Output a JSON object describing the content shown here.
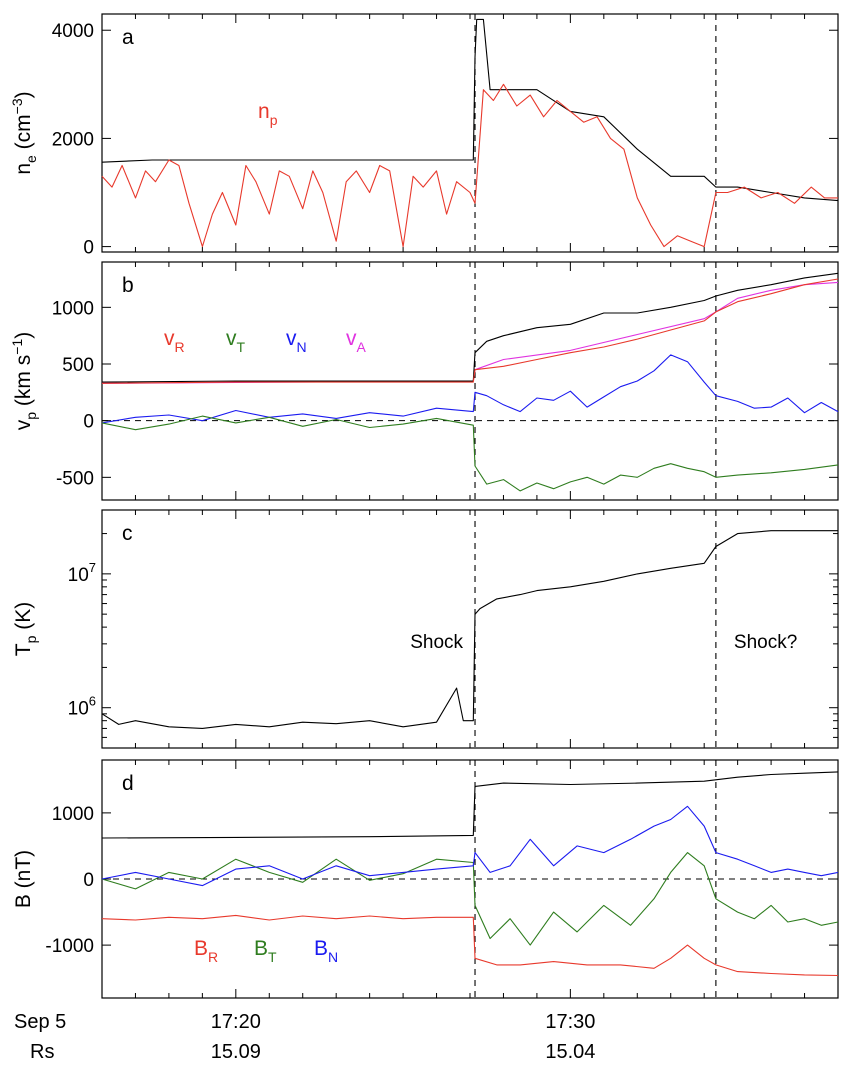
{
  "colors": {
    "black": "#000000",
    "red": "#e8392c",
    "green": "#2f7d1f",
    "blue": "#1b1bf0",
    "magenta": "#e033e0"
  },
  "xaxis": {
    "row_labels": [
      "Sep 5",
      "Rs"
    ],
    "ticks": [
      {
        "time": "17:20",
        "rs": "15.09",
        "t": 20
      },
      {
        "time": "17:30",
        "rs": "15.04",
        "t": 30
      }
    ],
    "range": [
      16.0,
      38.0
    ]
  },
  "vlines": [
    {
      "t": 27.15,
      "label": "Shock"
    },
    {
      "t": 34.35,
      "label": "Shock?"
    }
  ],
  "chart_data": [
    {
      "panel": "a",
      "type": "line",
      "ylabel": "n",
      "ylabel_sub": "e",
      "ylabel_unit": " (cm",
      "ylabel_sup": "−3",
      "ylabel_close": ")",
      "ylim": [
        -100,
        4300
      ],
      "yticks": [
        0,
        2000,
        4000
      ],
      "scale": "linear",
      "labels": [
        {
          "text": "n",
          "sub": "p",
          "color": "red"
        }
      ],
      "series": [
        {
          "name": "n_e",
          "color": "black",
          "x": [
            16.0,
            17.5,
            18.5,
            20.0,
            22.0,
            24.0,
            26.0,
            27.1,
            27.15,
            27.2,
            27.4,
            27.6,
            28.0,
            29.0,
            30.0,
            31.0,
            32.0,
            33.0,
            34.0,
            34.35,
            35.0,
            36.0,
            37.0,
            38.0
          ],
          "y": [
            1560,
            1600,
            1600,
            1600,
            1600,
            1600,
            1600,
            1600,
            3500,
            4200,
            4200,
            2900,
            2900,
            2900,
            2500,
            2400,
            1800,
            1300,
            1300,
            1100,
            1100,
            1000,
            900,
            850
          ]
        },
        {
          "name": "n_p",
          "color": "red",
          "x": [
            16.0,
            16.3,
            16.6,
            17.0,
            17.3,
            17.6,
            18.0,
            18.3,
            18.6,
            19.0,
            19.3,
            19.6,
            20.0,
            20.3,
            20.6,
            21.0,
            21.3,
            21.6,
            22.0,
            22.3,
            22.6,
            23.0,
            23.3,
            23.6,
            24.0,
            24.3,
            24.6,
            25.0,
            25.3,
            25.6,
            26.0,
            26.3,
            26.6,
            27.0,
            27.15,
            27.4,
            27.7,
            28.0,
            28.4,
            28.8,
            29.2,
            29.6,
            30.0,
            30.4,
            30.8,
            31.2,
            31.6,
            32.0,
            32.4,
            32.8,
            33.2,
            33.6,
            34.0,
            34.35,
            34.7,
            35.2,
            35.7,
            36.2,
            36.7,
            37.2,
            37.6,
            38.0
          ],
          "y": [
            1300,
            1100,
            1500,
            900,
            1400,
            1200,
            1600,
            1500,
            800,
            0,
            600,
            1000,
            400,
            1500,
            1200,
            600,
            1400,
            1300,
            700,
            1400,
            1000,
            100,
            1200,
            1400,
            1000,
            1500,
            1400,
            0,
            1300,
            1100,
            1400,
            600,
            1200,
            1000,
            800,
            2900,
            2700,
            3000,
            2600,
            2800,
            2400,
            2700,
            2500,
            2300,
            2400,
            2000,
            1800,
            900,
            400,
            0,
            200,
            100,
            0,
            1000,
            1000,
            1100,
            900,
            1000,
            800,
            1100,
            900,
            900
          ]
        }
      ]
    },
    {
      "panel": "b",
      "type": "line",
      "ylabel": "v",
      "ylabel_sub": "p",
      "ylabel_unit": " (km s",
      "ylabel_sup": "−1",
      "ylabel_close": ")",
      "ylim": [
        -700,
        1400
      ],
      "yticks": [
        -500,
        0,
        500,
        1000
      ],
      "scale": "linear",
      "hline": 0,
      "labels": [
        {
          "text": "v",
          "sub": "R",
          "color": "red"
        },
        {
          "text": "v",
          "sub": "T",
          "color": "green"
        },
        {
          "text": "v",
          "sub": "N",
          "color": "blue"
        },
        {
          "text": "v",
          "sub": "A",
          "color": "magenta"
        }
      ],
      "series": [
        {
          "name": "v_A",
          "color": "magenta",
          "x": [
            16.0,
            27.1,
            27.15,
            28.0,
            30.0,
            32.0,
            34.0,
            34.35,
            35.0,
            36.0,
            37.0,
            38.0
          ],
          "y": [
            330,
            350,
            450,
            540,
            620,
            760,
            900,
            960,
            1080,
            1150,
            1200,
            1220
          ]
        },
        {
          "name": "speed",
          "color": "black",
          "x": [
            16.0,
            20.0,
            24.0,
            27.1,
            27.15,
            27.5,
            28.0,
            29.0,
            30.0,
            31.0,
            32.0,
            33.0,
            34.0,
            34.35,
            35.0,
            36.0,
            37.0,
            38.0
          ],
          "y": [
            340,
            350,
            350,
            350,
            600,
            700,
            750,
            820,
            850,
            950,
            950,
            1000,
            1060,
            1100,
            1150,
            1200,
            1260,
            1300
          ]
        },
        {
          "name": "v_R",
          "color": "red",
          "x": [
            16.0,
            20.0,
            24.0,
            27.1,
            27.15,
            28.0,
            29.0,
            30.0,
            31.0,
            32.0,
            33.0,
            34.0,
            34.35,
            35.0,
            36.0,
            37.0,
            38.0
          ],
          "y": [
            330,
            340,
            340,
            340,
            450,
            480,
            540,
            600,
            650,
            720,
            800,
            880,
            960,
            1050,
            1120,
            1200,
            1250
          ]
        },
        {
          "name": "v_N",
          "color": "blue",
          "x": [
            16.0,
            17.0,
            18.0,
            19.0,
            20.0,
            21.0,
            22.0,
            23.0,
            24.0,
            25.0,
            26.0,
            27.1,
            27.15,
            27.5,
            28.0,
            28.5,
            29.0,
            29.5,
            30.0,
            30.5,
            31.0,
            31.5,
            32.0,
            32.5,
            33.0,
            33.5,
            34.0,
            34.35,
            35.0,
            35.5,
            36.0,
            36.5,
            37.0,
            37.5,
            38.0
          ],
          "y": [
            -20,
            30,
            50,
            0,
            90,
            30,
            60,
            20,
            70,
            40,
            110,
            80,
            250,
            220,
            140,
            80,
            200,
            180,
            260,
            120,
            210,
            300,
            350,
            440,
            580,
            520,
            340,
            220,
            170,
            110,
            120,
            200,
            70,
            160,
            80
          ]
        },
        {
          "name": "v_T",
          "color": "green",
          "x": [
            16.0,
            17.0,
            18.0,
            19.0,
            20.0,
            21.0,
            22.0,
            23.0,
            24.0,
            25.0,
            26.0,
            27.1,
            27.15,
            27.5,
            28.0,
            28.5,
            29.0,
            29.5,
            30.0,
            30.5,
            31.0,
            31.5,
            32.0,
            32.5,
            33.0,
            33.5,
            34.0,
            34.35,
            35.0,
            36.0,
            37.0,
            38.0
          ],
          "y": [
            -20,
            -80,
            -30,
            40,
            -20,
            30,
            -50,
            10,
            -60,
            -30,
            20,
            -40,
            -400,
            -560,
            -520,
            -620,
            -550,
            -600,
            -540,
            -500,
            -560,
            -480,
            -500,
            -420,
            -380,
            -420,
            -450,
            -500,
            -480,
            -460,
            -430,
            -390
          ]
        }
      ]
    },
    {
      "panel": "c",
      "type": "line",
      "ylabel": "T",
      "ylabel_sub": "p",
      "ylabel_unit": " (K)",
      "ylim": [
        500000,
        30000000
      ],
      "scale": "log",
      "yticks": [
        1000000,
        10000000
      ],
      "ytick_labels": [
        {
          "base": "10",
          "exp": "6"
        },
        {
          "base": "10",
          "exp": "7"
        }
      ],
      "labels": [],
      "series": [
        {
          "name": "T_p",
          "color": "black",
          "x": [
            16.0,
            16.5,
            17.0,
            18.0,
            19.0,
            20.0,
            21.0,
            22.0,
            23.0,
            24.0,
            25.0,
            26.0,
            26.6,
            26.8,
            27.1,
            27.15,
            27.3,
            27.8,
            28.5,
            29.0,
            30.0,
            31.0,
            32.0,
            33.0,
            34.0,
            34.35,
            35.0,
            36.0,
            37.0,
            38.0
          ],
          "y": [
            900000,
            750000,
            800000,
            720000,
            700000,
            750000,
            720000,
            780000,
            760000,
            800000,
            720000,
            780000,
            1400000,
            800000,
            800000,
            5000000,
            5500000,
            6500000,
            7000000,
            7500000,
            8000000,
            8800000,
            10000000,
            11000000,
            12000000,
            16000000,
            20000000,
            21000000,
            21000000,
            21000000
          ]
        }
      ]
    },
    {
      "panel": "d",
      "type": "line",
      "ylabel": "B",
      "ylabel_sub": "",
      "ylabel_unit": " (nT)",
      "ylim": [
        -1800,
        1800
      ],
      "yticks": [
        -1000,
        0,
        1000
      ],
      "scale": "linear",
      "hline": 0,
      "labels": [
        {
          "text": "B",
          "sub": "R",
          "color": "red"
        },
        {
          "text": "B",
          "sub": "T",
          "color": "green"
        },
        {
          "text": "B",
          "sub": "N",
          "color": "blue"
        }
      ],
      "series": [
        {
          "name": "|B|",
          "color": "black",
          "x": [
            16.0,
            20.0,
            24.0,
            27.1,
            27.15,
            28.0,
            30.0,
            32.0,
            34.0,
            35.0,
            36.0,
            37.0,
            38.0
          ],
          "y": [
            620,
            630,
            640,
            660,
            1400,
            1450,
            1430,
            1450,
            1480,
            1540,
            1580,
            1600,
            1620
          ]
        },
        {
          "name": "B_T",
          "color": "green",
          "x": [
            16.0,
            17.0,
            18.0,
            19.0,
            20.0,
            21.0,
            22.0,
            23.0,
            24.0,
            25.0,
            26.0,
            27.1,
            27.15,
            27.6,
            28.2,
            28.8,
            29.5,
            30.2,
            31.0,
            31.8,
            32.5,
            33.0,
            33.5,
            34.0,
            34.35,
            35.0,
            35.5,
            36.0,
            36.5,
            37.0,
            37.5,
            38.0
          ],
          "y": [
            0,
            -150,
            100,
            0,
            300,
            100,
            -50,
            300,
            -20,
            80,
            300,
            250,
            -400,
            -900,
            -600,
            -1000,
            -500,
            -800,
            -400,
            -700,
            -300,
            100,
            400,
            200,
            -300,
            -500,
            -600,
            -400,
            -650,
            -600,
            -700,
            -650
          ]
        },
        {
          "name": "B_N",
          "color": "blue",
          "x": [
            16.0,
            17.0,
            18.0,
            19.0,
            20.0,
            21.0,
            22.0,
            23.0,
            24.0,
            25.0,
            26.0,
            27.1,
            27.15,
            27.6,
            28.2,
            28.8,
            29.5,
            30.2,
            31.0,
            31.8,
            32.5,
            33.0,
            33.5,
            34.0,
            34.35,
            35.0,
            35.5,
            36.0,
            36.5,
            37.0,
            37.5,
            38.0
          ],
          "y": [
            0,
            100,
            0,
            -100,
            150,
            200,
            0,
            200,
            50,
            100,
            150,
            200,
            400,
            100,
            200,
            600,
            200,
            500,
            400,
            600,
            800,
            900,
            1100,
            800,
            400,
            300,
            200,
            100,
            150,
            100,
            50,
            100
          ]
        },
        {
          "name": "B_R",
          "color": "red",
          "x": [
            16.0,
            17.0,
            18.0,
            19.0,
            20.0,
            21.0,
            22.0,
            23.0,
            24.0,
            25.0,
            26.0,
            27.1,
            27.15,
            27.8,
            28.5,
            29.5,
            30.5,
            31.5,
            32.5,
            33.0,
            33.5,
            34.0,
            34.35,
            35.0,
            36.0,
            37.0,
            38.0
          ],
          "y": [
            -600,
            -620,
            -580,
            -600,
            -550,
            -620,
            -560,
            -600,
            -560,
            -600,
            -580,
            -580,
            -1200,
            -1300,
            -1300,
            -1250,
            -1300,
            -1300,
            -1350,
            -1200,
            -1000,
            -1200,
            -1300,
            -1400,
            -1430,
            -1450,
            -1460
          ]
        }
      ]
    }
  ]
}
